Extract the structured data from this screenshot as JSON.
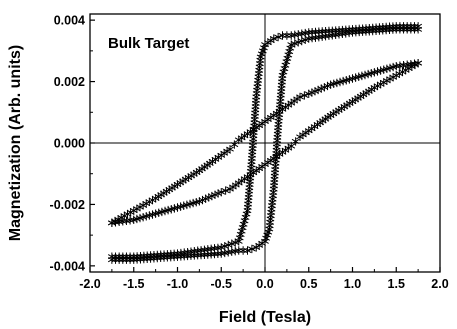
{
  "chart_data": {
    "type": "scatter",
    "title": "",
    "annotation": "Bulk Target",
    "xlabel": "Field (Tesla)",
    "ylabel": "Magnetization (Arb. units)",
    "xlim": [
      -2.0,
      2.0
    ],
    "ylim": [
      -0.0042,
      0.0042
    ],
    "x_ticks": [
      -2.0,
      -1.5,
      -1.0,
      -0.5,
      0.0,
      0.5,
      1.0,
      1.5,
      2.0
    ],
    "x_tick_labels": [
      "-2.0",
      "-1.5",
      "-1.0",
      "-0.5",
      "0.0",
      "0.5",
      "1.0",
      "1.5",
      "2.0"
    ],
    "y_ticks": [
      -0.004,
      -0.002,
      0.0,
      0.002,
      0.004
    ],
    "y_tick_labels": [
      "-0.004",
      "-0.002",
      "0.000",
      "0.002",
      "0.004"
    ],
    "grid": false,
    "reference_lines": {
      "x": 0.0,
      "y": 0.0
    },
    "marker": "asterisk",
    "marker_color": "#000000",
    "series": [
      {
        "x": [
          -1.75,
          -1.5,
          -1.25,
          -1.0,
          -0.75,
          -0.6,
          -0.5,
          -0.4,
          -0.35,
          -0.3,
          -0.2,
          -0.1,
          0.0,
          0.1,
          0.2,
          0.3,
          0.4,
          0.5,
          0.75,
          1.0,
          1.25,
          1.5,
          1.75
        ],
        "y": [
          -0.0026,
          -0.0022,
          -0.0018,
          -0.00135,
          -0.0009,
          -0.0006,
          -0.0004,
          -0.0002,
          -5e-05,
          0.0001,
          0.0003,
          0.0005,
          0.0007,
          0.0009,
          0.0011,
          0.0013,
          0.0015,
          0.0016,
          0.0019,
          0.0021,
          0.0023,
          0.0025,
          0.0026
        ]
      },
      {
        "x": [
          -1.75,
          -1.5,
          -1.25,
          -1.0,
          -0.75,
          -0.5,
          -0.4,
          -0.3,
          -0.2,
          -0.1,
          0.0,
          0.1,
          0.2,
          0.3,
          0.35,
          0.4,
          0.5,
          0.6,
          0.75,
          1.0,
          1.25,
          1.5,
          1.75
        ],
        "y": [
          -0.0026,
          -0.0025,
          -0.0023,
          -0.0021,
          -0.0019,
          -0.0016,
          -0.0015,
          -0.0013,
          -0.0011,
          -0.0009,
          -0.0007,
          -0.0005,
          -0.0003,
          -0.0001,
          5e-05,
          0.0002,
          0.0004,
          0.0006,
          0.0009,
          0.00135,
          0.0018,
          0.0022,
          0.0026
        ]
      },
      {
        "x": [
          -1.75,
          -1.5,
          -1.0,
          -0.5,
          -0.3,
          -0.2,
          -0.15,
          -0.1,
          -0.05,
          0.0,
          0.1,
          0.2,
          0.3,
          0.5,
          1.0,
          1.5,
          1.75
        ],
        "y": [
          -0.0037,
          -0.0037,
          -0.0036,
          -0.0034,
          -0.0032,
          -0.0022,
          -0.0005,
          0.0015,
          0.0028,
          0.0032,
          0.0034,
          0.0035,
          0.0035,
          0.0036,
          0.0037,
          0.0038,
          0.0038
        ]
      },
      {
        "x": [
          -1.75,
          -1.5,
          -1.0,
          -0.5,
          -0.3,
          -0.2,
          -0.1,
          0.0,
          0.05,
          0.1,
          0.15,
          0.2,
          0.3,
          0.5,
          1.0,
          1.5,
          1.75
        ],
        "y": [
          -0.0038,
          -0.0038,
          -0.0037,
          -0.0036,
          -0.0035,
          -0.0035,
          -0.0034,
          -0.0032,
          -0.0028,
          -0.0015,
          0.0005,
          0.0022,
          0.0032,
          0.0034,
          0.0036,
          0.0037,
          0.0037
        ]
      }
    ]
  }
}
